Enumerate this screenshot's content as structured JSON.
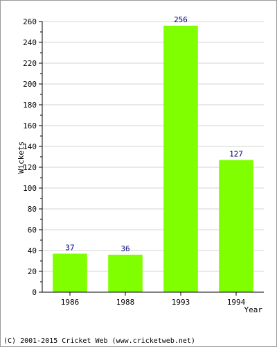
{
  "chart_data": {
    "type": "bar",
    "categories": [
      "1986",
      "1988",
      "1993",
      "1994"
    ],
    "values": [
      37,
      36,
      256,
      127
    ],
    "data_labels": [
      "37",
      "36",
      "256",
      "127"
    ],
    "title": "",
    "xlabel": "Year",
    "ylabel": "Wickets",
    "ylim": [
      0,
      260
    ],
    "major_ticks": [
      0,
      20,
      40,
      60,
      80,
      100,
      120,
      140,
      160,
      180,
      200,
      220,
      240,
      260
    ],
    "grid": true,
    "colors": {
      "bar": "#80ff00",
      "data_label": "#000080",
      "grid": "#d3d3d3"
    }
  },
  "footer": "(C) 2001-2015 Cricket Web (www.cricketweb.net)"
}
